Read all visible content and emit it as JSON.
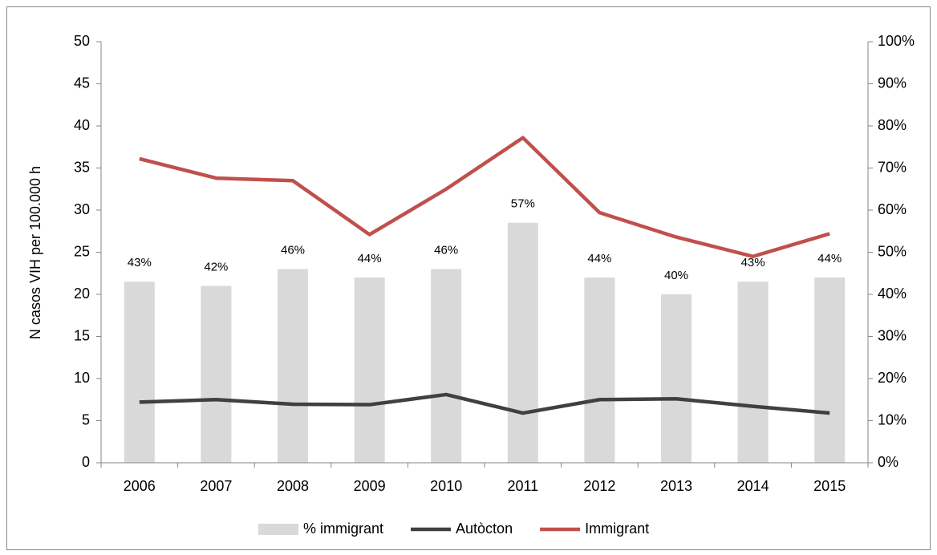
{
  "chart_data": {
    "type": "combo",
    "ylabel": "N casos VIH per 100.000 h",
    "categories": [
      "2006",
      "2007",
      "2008",
      "2009",
      "2010",
      "2011",
      "2012",
      "2013",
      "2014",
      "2015"
    ],
    "series": [
      {
        "name": "% immigrant",
        "type": "bar",
        "axis": "y2",
        "color": "#d9d9d9",
        "values": [
          43,
          42,
          46,
          44,
          46,
          57,
          44,
          40,
          43,
          44
        ],
        "value_labels": [
          "43%",
          "42%",
          "46%",
          "44%",
          "46%",
          "57%",
          "44%",
          "40%",
          "43%",
          "44%"
        ]
      },
      {
        "name": "Autòcton",
        "type": "line",
        "axis": "y",
        "color": "#404040",
        "values": [
          7.2,
          7.5,
          6.95,
          6.9,
          8.1,
          5.9,
          7.5,
          7.6,
          6.7,
          5.9
        ]
      },
      {
        "name": "Immigrant",
        "type": "line",
        "axis": "y",
        "color": "#c0504d",
        "values": [
          36.1,
          33.8,
          33.5,
          27.1,
          32.5,
          38.6,
          29.7,
          26.8,
          24.5,
          27.2
        ]
      }
    ],
    "ylim": [
      0,
      50
    ],
    "yticks": [
      0,
      5,
      10,
      15,
      20,
      25,
      30,
      35,
      40,
      45,
      50
    ],
    "y2lim": [
      0,
      100
    ],
    "y2ticks": [
      {
        "value": 0,
        "label": "0%"
      },
      {
        "value": 10,
        "label": "10%"
      },
      {
        "value": 20,
        "label": "20%"
      },
      {
        "value": 30,
        "label": "30%"
      },
      {
        "value": 40,
        "label": "40%"
      },
      {
        "value": 50,
        "label": "50%"
      },
      {
        "value": 60,
        "label": "60%"
      },
      {
        "value": 70,
        "label": "70%"
      },
      {
        "value": 80,
        "label": "80%"
      },
      {
        "value": 90,
        "label": "90%"
      },
      {
        "value": 100,
        "label": "100%"
      }
    ],
    "grid": false,
    "legend": "bottom"
  }
}
